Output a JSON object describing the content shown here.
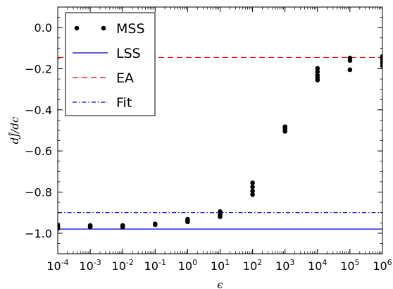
{
  "chart_data": {
    "type": "scatter",
    "xlabel": "ϵ",
    "ylabel": "dJ̄/dc",
    "xscale": "log",
    "xlim": [
      0.0001,
      1000000
    ],
    "ylim": [
      -1.1,
      0.1
    ],
    "x_ticks": [
      {
        "value": 0.0001,
        "base": "10",
        "exp": "-4"
      },
      {
        "value": 0.001,
        "base": "10",
        "exp": "-3"
      },
      {
        "value": 0.01,
        "base": "10",
        "exp": "-2"
      },
      {
        "value": 0.1,
        "base": "10",
        "exp": "-1"
      },
      {
        "value": 1,
        "base": "10",
        "exp": "0"
      },
      {
        "value": 10,
        "base": "10",
        "exp": "1"
      },
      {
        "value": 100,
        "base": "10",
        "exp": "2"
      },
      {
        "value": 1000,
        "base": "10",
        "exp": "3"
      },
      {
        "value": 10000,
        "base": "10",
        "exp": "4"
      },
      {
        "value": 100000,
        "base": "10",
        "exp": "5"
      },
      {
        "value": 1000000,
        "base": "10",
        "exp": "6"
      }
    ],
    "y_ticks": [
      {
        "value": 0.0,
        "label": "0.0"
      },
      {
        "value": -0.2,
        "label": "−0.2"
      },
      {
        "value": -0.4,
        "label": "−0.4"
      },
      {
        "value": -0.6,
        "label": "−0.6"
      },
      {
        "value": -0.8,
        "label": "−0.8"
      },
      {
        "value": -1.0,
        "label": "−1.0"
      }
    ],
    "grid": false,
    "legend_position": "top-left",
    "series": [
      {
        "name": "MSS",
        "kind": "points",
        "color": "#000000",
        "points": [
          {
            "x": 0.0001,
            "y": -0.962
          },
          {
            "x": 0.0001,
            "y": -0.967
          },
          {
            "x": 0.0001,
            "y": -0.972
          },
          {
            "x": 0.0001,
            "y": -0.977
          },
          {
            "x": 0.001,
            "y": -0.962
          },
          {
            "x": 0.001,
            "y": -0.966
          },
          {
            "x": 0.001,
            "y": -0.97
          },
          {
            "x": 0.01,
            "y": -0.962
          },
          {
            "x": 0.01,
            "y": -0.966
          },
          {
            "x": 0.01,
            "y": -0.97
          },
          {
            "x": 0.1,
            "y": -0.955
          },
          {
            "x": 0.1,
            "y": -0.959
          },
          {
            "x": 1,
            "y": -0.932
          },
          {
            "x": 1,
            "y": -0.938
          },
          {
            "x": 1,
            "y": -0.945
          },
          {
            "x": 10,
            "y": -0.895
          },
          {
            "x": 10,
            "y": -0.903
          },
          {
            "x": 10,
            "y": -0.912
          },
          {
            "x": 10,
            "y": -0.92
          },
          {
            "x": 100,
            "y": -0.755
          },
          {
            "x": 100,
            "y": -0.775
          },
          {
            "x": 100,
            "y": -0.795
          },
          {
            "x": 100,
            "y": -0.812
          },
          {
            "x": 1000,
            "y": -0.482
          },
          {
            "x": 1000,
            "y": -0.492
          },
          {
            "x": 1000,
            "y": -0.505
          },
          {
            "x": 10000,
            "y": -0.198
          },
          {
            "x": 10000,
            "y": -0.215
          },
          {
            "x": 10000,
            "y": -0.232
          },
          {
            "x": 10000,
            "y": -0.243
          },
          {
            "x": 10000,
            "y": -0.255
          },
          {
            "x": 100000,
            "y": -0.148
          },
          {
            "x": 100000,
            "y": -0.16
          },
          {
            "x": 100000,
            "y": -0.205
          },
          {
            "x": 1000000,
            "y": -0.14
          },
          {
            "x": 1000000,
            "y": -0.155
          },
          {
            "x": 1000000,
            "y": -0.17
          },
          {
            "x": 1000000,
            "y": -0.185
          }
        ]
      },
      {
        "name": "LSS",
        "kind": "hline",
        "y": -0.98,
        "color": "#0000cc",
        "style": "solid"
      },
      {
        "name": "EA",
        "kind": "hline",
        "y": -0.145,
        "color": "#dd0000",
        "style": "dashed"
      },
      {
        "name": "Fit",
        "kind": "hline",
        "y": -0.9,
        "color": "#0000cc",
        "style": "dashdot"
      }
    ]
  }
}
